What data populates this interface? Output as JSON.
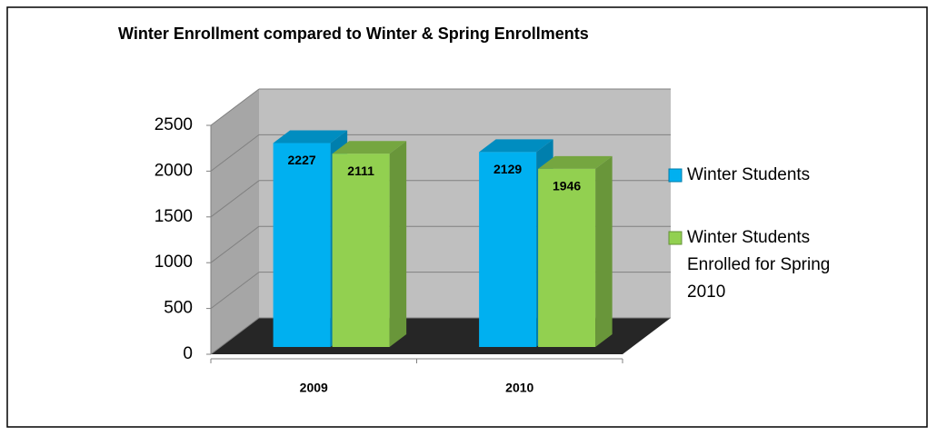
{
  "chart_data": {
    "type": "bar3d",
    "title": "Winter Enrollment compared to Winter & Spring Enrollments",
    "categories": [
      "2009",
      "2010"
    ],
    "series": [
      {
        "name": "Winter Students",
        "color": "#00b0f0",
        "values": [
          2227,
          2129
        ]
      },
      {
        "name": "Winter Students Enrolled for Spring 2010",
        "color": "#92d050",
        "values": [
          2111,
          1946
        ]
      }
    ],
    "ylim": [
      0,
      2500
    ],
    "yticks": [
      0,
      500,
      1000,
      1500,
      2000,
      2500
    ],
    "grid": true,
    "legend": "right"
  }
}
